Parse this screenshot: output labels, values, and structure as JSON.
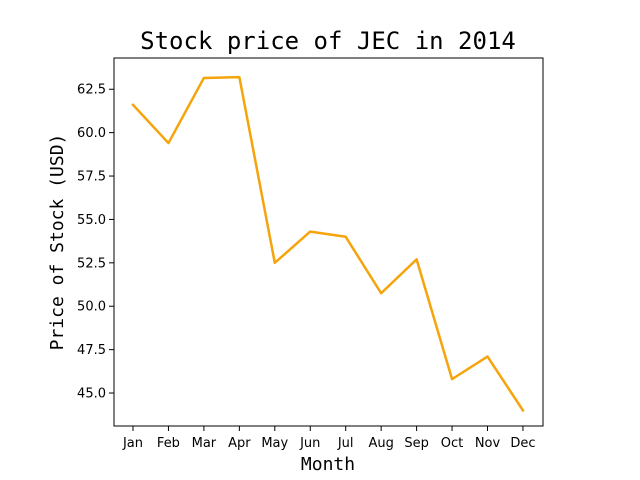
{
  "chart_data": {
    "type": "line",
    "title": "Stock price of JEC in 2014",
    "xlabel": "Month",
    "ylabel": "Price of Stock (USD)",
    "categories": [
      "Jan",
      "Feb",
      "Mar",
      "Apr",
      "May",
      "Jun",
      "Jul",
      "Aug",
      "Sep",
      "Oct",
      "Nov",
      "Dec"
    ],
    "series": [
      {
        "values": [
          61.6,
          59.4,
          63.15,
          63.2,
          52.5,
          54.3,
          54.0,
          50.75,
          52.7,
          45.8,
          47.1,
          44.0
        ],
        "color": "#f5a40b"
      }
    ],
    "ylim": [
      43.1,
      64.3
    ],
    "yticks": [
      "45.0",
      "47.5",
      "50.0",
      "52.5",
      "55.0",
      "57.5",
      "60.0",
      "62.5"
    ],
    "grid": false,
    "legend": "none"
  }
}
